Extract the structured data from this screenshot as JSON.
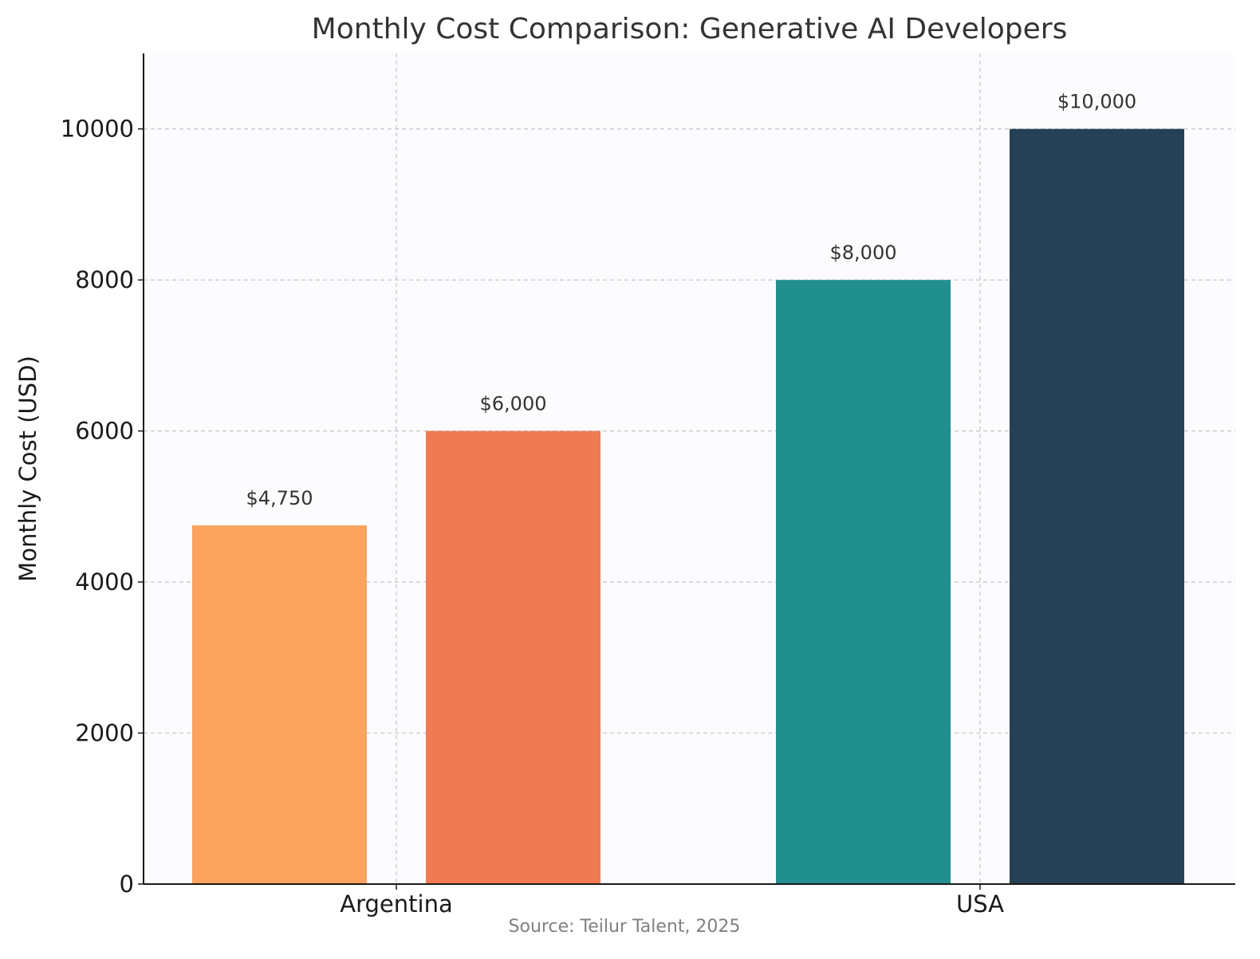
{
  "colors": {
    "argentina_low": "#fca360",
    "argentina_high": "#f07a53",
    "usa_low": "#228f8f",
    "usa_high": "#244155",
    "plot_background": "#fcfbfd",
    "grid": "#c4c4c8",
    "axis": "#1a1a1a"
  },
  "chart_data": {
    "type": "bar",
    "title": "Monthly Cost Comparison: Generative AI Developers",
    "xlabel": "",
    "ylabel": "Monthly Cost (USD)",
    "categories": [
      "Argentina",
      "USA"
    ],
    "bars": [
      {
        "category": "Argentina",
        "value": 4750,
        "label": "$4,750",
        "color": "#fca360"
      },
      {
        "category": "Argentina",
        "value": 6000,
        "label": "$6,000",
        "color": "#f07a53"
      },
      {
        "category": "USA",
        "value": 8000,
        "label": "$8,000",
        "color": "#228f8f"
      },
      {
        "category": "USA",
        "value": 10000,
        "label": "$10,000",
        "color": "#244155"
      }
    ],
    "yticks": [
      0,
      2000,
      4000,
      6000,
      8000,
      10000
    ],
    "ylim": [
      0,
      11000
    ],
    "grid": true,
    "grid_style": "dashed",
    "source": "Source: Teilur Talent, 2025"
  }
}
